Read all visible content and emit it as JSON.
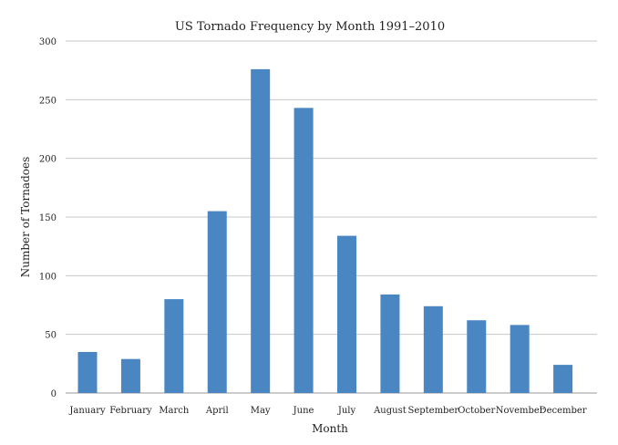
{
  "chart_data": {
    "type": "bar",
    "title": "US Tornado Frequency by Month 1991–2010",
    "xlabel": "Month",
    "ylabel": "Number of Tornadoes",
    "categories": [
      "January",
      "February",
      "March",
      "April",
      "May",
      "June",
      "July",
      "August",
      "September",
      "October",
      "November",
      "December"
    ],
    "values": [
      35,
      29,
      80,
      155,
      276,
      243,
      134,
      84,
      74,
      62,
      58,
      24
    ],
    "ylim": [
      0,
      300
    ],
    "yticks": [
      0,
      50,
      100,
      150,
      200,
      250,
      300
    ],
    "grid": true,
    "legend": "none",
    "bar_color": "#4a86c2"
  }
}
